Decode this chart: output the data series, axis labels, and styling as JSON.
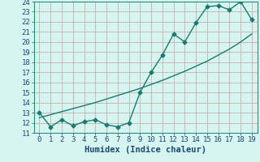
{
  "xlabel": "Humidex (Indice chaleur)",
  "x": [
    0,
    1,
    2,
    3,
    4,
    5,
    6,
    7,
    8,
    9,
    10,
    11,
    12,
    13,
    14,
    15,
    16,
    17,
    18,
    19
  ],
  "y_line": [
    13.0,
    11.6,
    12.3,
    11.7,
    12.1,
    12.3,
    11.8,
    11.6,
    12.0,
    15.0,
    17.0,
    18.7,
    20.8,
    20.0,
    21.9,
    23.5,
    23.6,
    23.2,
    24.0,
    22.2
  ],
  "y_trend": [
    12.5,
    12.8,
    13.1,
    13.4,
    13.7,
    14.0,
    14.35,
    14.7,
    15.05,
    15.4,
    15.8,
    16.2,
    16.65,
    17.1,
    17.6,
    18.1,
    18.7,
    19.3,
    20.0,
    20.8
  ],
  "line_color": "#1a7a6e",
  "bg_color": "#d6f5f0",
  "grid_color": "#c8b0b0",
  "ylim": [
    11,
    24
  ],
  "xlim": [
    -0.5,
    19.5
  ],
  "yticks": [
    11,
    12,
    13,
    14,
    15,
    16,
    17,
    18,
    19,
    20,
    21,
    22,
    23,
    24
  ],
  "xticks": [
    0,
    1,
    2,
    3,
    4,
    5,
    6,
    7,
    8,
    9,
    10,
    11,
    12,
    13,
    14,
    15,
    16,
    17,
    18,
    19
  ],
  "marker": "D",
  "markersize": 2.5,
  "linewidth": 1.0,
  "tick_fontsize": 6.5,
  "xlabel_fontsize": 7.5,
  "xlabel_color": "#1a4a6e",
  "tick_color": "#1a4a6e"
}
